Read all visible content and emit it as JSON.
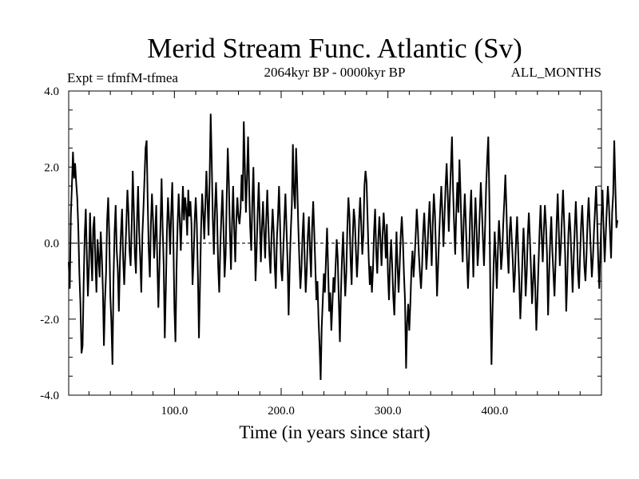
{
  "chart_data": {
    "type": "line",
    "title": "Merid Stream Func. Atlantic (Sv)",
    "subtitle_left": "Expt = tfmfM-tfmea",
    "subtitle_center": "2064kyr BP - 0000kyr BP",
    "subtitle_right": "ALL_MONTHS",
    "xlabel": "Time (in years since start)",
    "ylabel": "",
    "xlim": [
      1,
      500
    ],
    "ylim": [
      -4.0,
      4.0
    ],
    "x_ticks": [
      100,
      200,
      300,
      400
    ],
    "x_tick_labels": [
      "100.0",
      "200.0",
      "300.0",
      "400.0"
    ],
    "y_ticks": [
      -4.0,
      -2.0,
      0.0,
      2.0,
      4.0
    ],
    "y_tick_labels": [
      "-4.0",
      "-2.0",
      "0.0",
      "2.0",
      "4.0"
    ],
    "reference_line": 0.0,
    "series": [
      {
        "name": "Merid Stream Func. Atlantic",
        "x_start": 1,
        "x_step": 1,
        "values": [
          -0.5,
          -1.2,
          0.7,
          1.5,
          2.4,
          1.7,
          2.1,
          1.6,
          1.2,
          0.4,
          -0.8,
          -1.6,
          -2.9,
          -2.7,
          -1.1,
          0.2,
          0.9,
          -0.3,
          -1.4,
          -0.6,
          0.8,
          -0.2,
          -1.0,
          0.4,
          0.7,
          -0.5,
          -1.3,
          0.1,
          -0.4,
          -0.9,
          0.3,
          -0.3,
          -1.2,
          -2.7,
          -1.5,
          -0.8,
          0.6,
          1.2,
          0.2,
          -1.4,
          -2.1,
          -3.2,
          -0.9,
          0.3,
          1.0,
          -0.2,
          -0.7,
          -1.8,
          -0.5,
          0.3,
          0.9,
          -0.4,
          -1.1,
          -0.3,
          0.5,
          1.4,
          0.8,
          -0.2,
          -0.6,
          0.4,
          1.9,
          0.9,
          -0.3,
          -0.8,
          0.6,
          1.5,
          0.3,
          -0.4,
          -1.3,
          0.2,
          0.9,
          1.7,
          2.5,
          2.7,
          1.1,
          -0.2,
          -0.9,
          0.5,
          1.3,
          0.6,
          -0.4,
          0.2,
          1.0,
          -0.5,
          -1.7,
          -0.6,
          0.5,
          1.7,
          0.4,
          -0.6,
          -2.5,
          -1.2,
          0.3,
          1.2,
          0.6,
          -0.3,
          0.8,
          1.6,
          0.2,
          -1.7,
          -2.6,
          -0.7,
          0.5,
          1.3,
          0.6,
          -0.2,
          0.7,
          1.5,
          0.6,
          1.2,
          0.9,
          0.2,
          1.4,
          0.7,
          1.1,
          0.5,
          -1.1,
          -0.4,
          0.6,
          1.2,
          0.5,
          -0.8,
          -2.5,
          -1.1,
          0.4,
          1.3,
          0.8,
          0.1,
          1.0,
          1.9,
          1.1,
          0.2,
          1.7,
          3.4,
          2.1,
          0.6,
          -0.3,
          0.9,
          1.6,
          0.7,
          -0.6,
          -1.3,
          -0.1,
          0.7,
          1.4,
          0.4,
          -0.9,
          -0.3,
          1.2,
          2.5,
          1.6,
          0.3,
          -0.7,
          0.5,
          1.5,
          0.4,
          -0.5,
          0.6,
          1.2,
          0.7,
          0.5,
          0.9,
          1.8,
          1.1,
          3.2,
          2.0,
          0.8,
          1.7,
          2.8,
          1.5,
          0.4,
          -0.2,
          1.1,
          2.0,
          0.6,
          -1.0,
          -0.2,
          0.8,
          1.6,
          0.6,
          -0.5,
          0.4,
          1.1,
          0.3,
          -0.4,
          0.6,
          1.4,
          0.5,
          -0.3,
          -0.8,
          0.2,
          0.9,
          0.3,
          -0.6,
          -1.2,
          0.1,
          0.7,
          1.5,
          0.5,
          -0.7,
          -1.0,
          -0.2,
          0.6,
          1.3,
          0.4,
          -0.5,
          -1.9,
          -0.6,
          0.3,
          1.0,
          2.6,
          1.3,
          0.9,
          2.5,
          1.6,
          0.5,
          -0.4,
          -1.2,
          -0.7,
          0.2,
          0.8,
          -0.4,
          -1.3,
          -0.7,
          0.2,
          0.7,
          -0.2,
          -0.9,
          0.4,
          1.1,
          0.3,
          -0.6,
          -1.5,
          -1.0,
          -2.0,
          -2.7,
          -3.6,
          -2.2,
          -1.5,
          -0.8,
          -1.3,
          -0.4,
          0.4,
          -0.7,
          -1.8,
          -1.3,
          -2.3,
          -1.6,
          -0.9,
          -1.3,
          -0.6,
          0.1,
          -0.4,
          -1.5,
          -2.6,
          -1.3,
          -0.4,
          0.3,
          -0.6,
          -1.4,
          -0.8,
          0.4,
          1.2,
          0.7,
          -0.4,
          -1.1,
          0.1,
          0.9,
          0.6,
          -0.2,
          -0.9,
          -0.3,
          0.6,
          1.2,
          0.5,
          -0.3,
          0.2,
          1.5,
          1.9,
          1.6,
          0.6,
          -0.4,
          -1.1,
          -0.6,
          -1.3,
          -0.7,
          0.3,
          0.9,
          -0.2,
          -0.8,
          0.1,
          0.7,
          0.1,
          -0.6,
          0.2,
          0.8,
          0.3,
          -0.4,
          0.5,
          -0.8,
          -1.5,
          -0.5,
          0.1,
          -0.6,
          -1.4,
          -1.9,
          -0.9,
          0.3,
          -0.6,
          -1.3,
          -0.6,
          0.2,
          0.7,
          0.1,
          -0.8,
          -1.5,
          -3.3,
          -2.1,
          -1.6,
          -2.3,
          -1.6,
          -0.7,
          -0.2,
          -0.9,
          -0.4,
          0.2,
          0.9,
          0.4,
          -0.3,
          -0.8,
          -1.2,
          -0.6,
          0.3,
          0.8,
          0.1,
          -0.7,
          -0.2,
          0.5,
          1.1,
          0.3,
          -0.6,
          0.5,
          1.3,
          0.8,
          -0.2,
          -1.4,
          -0.6,
          0.2,
          0.9,
          1.5,
          0.8,
          -0.1,
          0.7,
          1.5,
          2.1,
          1.3,
          0.3,
          1.2,
          2.0,
          2.8,
          1.4,
          0.5,
          -0.3,
          0.8,
          1.6,
          0.8,
          2.2,
          1.3,
          0.2,
          -0.5,
          0.6,
          1.3,
          0.5,
          -0.4,
          -1.2,
          -0.4,
          0.8,
          1.4,
          0.2,
          -0.9,
          0.3,
          1.2,
          0.4,
          -0.6,
          -0.1,
          0.8,
          1.6,
          0.9,
          0.1,
          -0.6,
          0.4,
          1.5,
          2.2,
          2.8,
          1.2,
          -1.5,
          -3.2,
          -1.8,
          -0.6,
          0.3,
          -0.4,
          -1.2,
          -0.2,
          0.6,
          0.1,
          -0.7,
          -0.3,
          0.5,
          1.1,
          1.8,
          0.9,
          -0.2,
          -0.8,
          0.3,
          0.7,
          0.1,
          -0.5,
          -1.3,
          -0.8,
          0.1,
          0.7,
          -0.2,
          -1.0,
          -2.0,
          -1.3,
          -0.4,
          0.4,
          -0.3,
          -1.4,
          -0.8,
          0.2,
          0.8,
          0.1,
          -0.7,
          -1.6,
          -1.0,
          -0.3,
          -1.2,
          -2.3,
          -1.5,
          -0.6,
          0.3,
          1.0,
          0.2,
          -0.5,
          0.3,
          1.0,
          0.5,
          -0.3,
          -1.9,
          -0.8,
          0.1,
          0.7,
          -0.2,
          -0.8,
          -1.4,
          -0.5,
          0.5,
          1.3,
          0.4,
          -0.6,
          -0.1,
          0.7,
          1.4,
          0.6,
          -0.3,
          -1.8,
          -0.9,
          0.2,
          0.8,
          0.3,
          -0.5,
          -1.3,
          -0.4,
          0.4,
          1.1,
          0.3,
          -0.8,
          -1.2,
          -0.3,
          0.5,
          1.0,
          0.2,
          -0.6,
          -1.0,
          -0.3,
          0.6,
          1.2,
          0.5,
          -0.2,
          -0.9,
          -0.4,
          0.3,
          0.9,
          1.5,
          0.6,
          -0.5,
          -1.2,
          -0.2,
          0.7,
          1.4,
          0.4,
          -0.5,
          0.2,
          0.9,
          1.5,
          1.0,
          0.3,
          -0.4,
          0.8,
          1.3,
          2.7,
          1.5,
          0.4,
          0.6
        ]
      }
    ]
  }
}
